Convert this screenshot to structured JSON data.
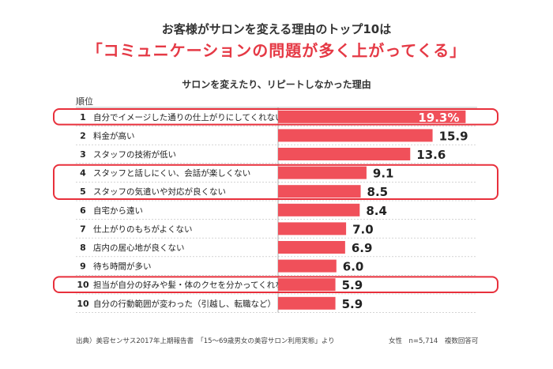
{
  "header": {
    "title": "お客様がサロンを変える理由のトップ10は",
    "headline": "「コミュニケーションの問題が多く上がってくる」"
  },
  "chart_data": {
    "type": "bar",
    "orientation": "horizontal",
    "title": "サロンを変えたり、リピートしなかった理由",
    "rank_header": "順位",
    "ranks": [
      "1",
      "2",
      "3",
      "4",
      "5",
      "6",
      "7",
      "8",
      "9",
      "10",
      "10"
    ],
    "categories": [
      "自分でイメージした通りの仕上がりにしてくれない",
      "料金が高い",
      "スタッフの技術が低い",
      "スタッフと話しにくい、会話が楽しくない",
      "スタッフの気遣いや対応が良くない",
      "自宅から遠い",
      "仕上がりのもちがよくない",
      "店内の居心地が良くない",
      "待ち時間が多い",
      "担当が自分の好みや髪・体のクセを分かってくれない",
      "自分の行動範囲が変わった（引越し、転職など）"
    ],
    "values": [
      19.3,
      15.9,
      13.6,
      9.1,
      8.5,
      8.4,
      7.0,
      6.9,
      6.0,
      5.9,
      5.9
    ],
    "value_labels": [
      "19.3%",
      "15.9",
      "13.6",
      "9.1",
      "8.5",
      "8.4",
      "7.0",
      "6.9",
      "6.0",
      "5.9",
      "5.9"
    ],
    "highlighted_groups": [
      [
        0
      ],
      [
        3,
        4
      ],
      [
        9
      ]
    ],
    "xlim": [
      0,
      20
    ],
    "colors": {
      "bar": "#f0505a",
      "highlight": "#e8303c",
      "grid": "#bbbbbb"
    }
  },
  "footer": {
    "source": "出典）美容センサス2017年上期報告書　「15～69歳男女の美容サロン利用実態」より",
    "note": "女性　n=5,714　複数回答可"
  }
}
